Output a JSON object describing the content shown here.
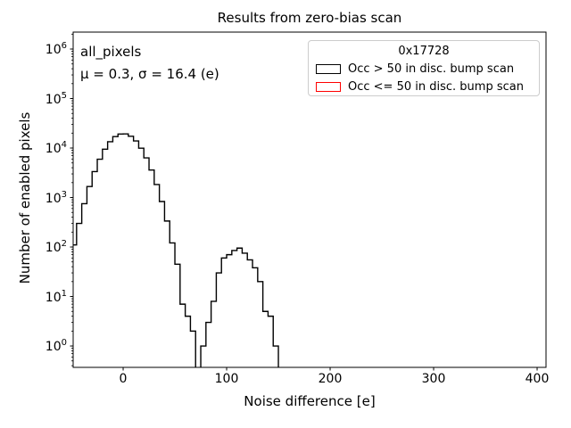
{
  "title": "Results from zero-bias scan",
  "annotation": {
    "line1": "all_pixels",
    "line2": "μ = 0.3, σ = 16.4 (e)"
  },
  "legend": {
    "title": "0x17728",
    "entries": [
      {
        "label": "Occ > 50 in disc. bump scan",
        "color": "#000000"
      },
      {
        "label": "Occ <= 50 in disc. bump scan",
        "color": "#ff0000"
      }
    ]
  },
  "chart_data": {
    "type": "bar",
    "style": "step-outline-histogram",
    "title": "Results from zero-bias scan",
    "xlabel": "Noise difference [e]",
    "ylabel": "Number of enabled pixels",
    "yscale": "log",
    "xlim": [
      -48.3,
      408.6
    ],
    "ylim": [
      0.37,
      2200000
    ],
    "xticks": [
      0,
      100,
      200,
      300,
      400
    ],
    "ytick_exponents": [
      0,
      1,
      2,
      3,
      4,
      5,
      6
    ],
    "grid": false,
    "legend_position": "upper right",
    "series_name": "Occ > 50 in disc. bump scan",
    "line_color": "#000000",
    "stats": {
      "mu": 0.3,
      "sigma": 16.4,
      "unit": "e"
    },
    "bin_width": 5,
    "bin_edges": [
      -50,
      -45,
      -40,
      -35,
      -30,
      -25,
      -20,
      -15,
      -10,
      -5,
      0,
      5,
      10,
      15,
      20,
      25,
      30,
      35,
      40,
      45,
      50,
      55,
      60,
      65,
      70,
      75,
      80,
      85,
      90,
      95,
      100,
      105,
      110,
      115,
      120,
      125,
      130,
      135,
      140,
      145,
      150
    ],
    "counts": [
      110,
      300,
      750,
      1670,
      3340,
      5950,
      9460,
      13400,
      17000,
      19150,
      19300,
      17300,
      13900,
      9930,
      6330,
      3600,
      1830,
      830,
      335,
      121,
      45,
      7,
      4,
      2,
      0,
      1,
      3,
      8,
      30,
      60,
      70,
      85,
      95,
      75,
      55,
      38,
      20,
      5,
      4,
      1
    ]
  }
}
